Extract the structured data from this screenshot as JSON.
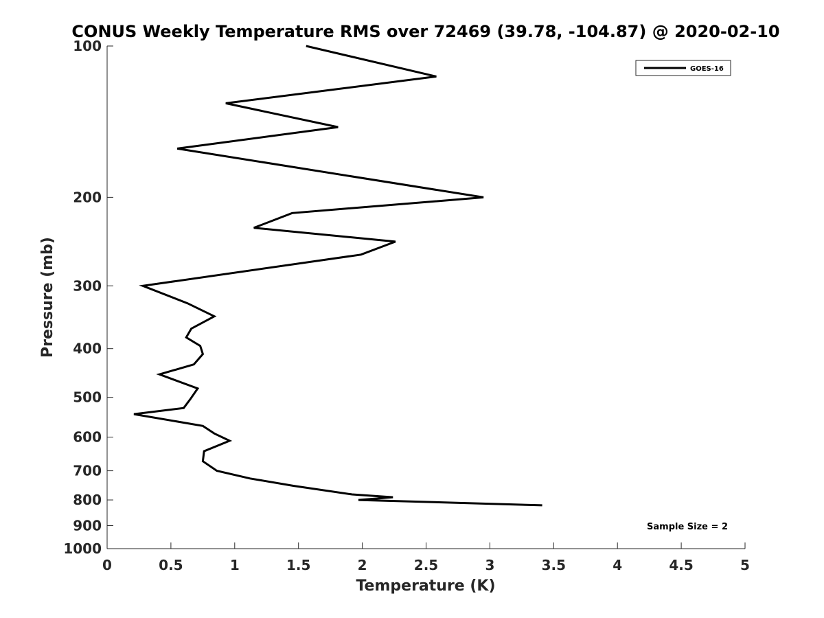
{
  "chart_data": {
    "type": "line",
    "title": "CONUS Weekly Temperature RMS over 72469 (39.78, -104.87) @ 2020-02-10",
    "xlabel": "Temperature (K)",
    "ylabel": "Pressure (mb)",
    "xlim": [
      0,
      5
    ],
    "ylim": [
      1000,
      100
    ],
    "yscale": "log",
    "y_reversed": true,
    "x_ticks": [
      "0",
      "0.5",
      "1",
      "1.5",
      "2",
      "2.5",
      "3",
      "3.5",
      "4",
      "4.5",
      "5"
    ],
    "y_ticks": [
      "100",
      "200",
      "300",
      "400",
      "500",
      "600",
      "700",
      "800",
      "900",
      "1000"
    ],
    "grid": false,
    "legend_position": "top-right",
    "annotation": "Sample Size = 2",
    "series": [
      {
        "name": "GOES-16",
        "color": "#000000",
        "x": [
          1.56,
          2.58,
          0.93,
          1.81,
          0.55,
          2.95,
          1.45,
          1.15,
          2.26,
          1.99,
          0.28,
          0.63,
          0.84,
          0.66,
          0.62,
          0.73,
          0.75,
          0.68,
          0.41,
          0.71,
          0.65,
          0.6,
          0.21,
          0.75,
          0.84,
          0.96,
          0.76,
          0.75,
          0.86,
          1.12,
          1.46,
          1.92,
          2.24,
          1.97,
          3.41
        ],
        "y": [
          100,
          115,
          130,
          145,
          160,
          200,
          215,
          230,
          245,
          260,
          300,
          325,
          345,
          365,
          380,
          395,
          410,
          430,
          450,
          480,
          505,
          525,
          540,
          570,
          590,
          610,
          640,
          670,
          700,
          725,
          750,
          780,
          790,
          800,
          820
        ]
      }
    ]
  }
}
